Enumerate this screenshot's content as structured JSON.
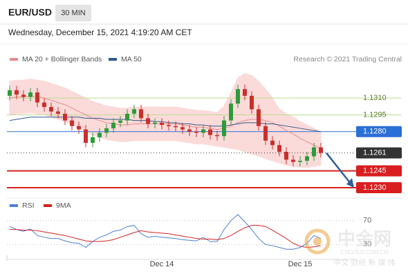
{
  "header": {
    "pair": "EUR/USD",
    "timeframe": "30 MIN",
    "datetime": "Wednesday, December 15, 2021 4:19:20 AM CET",
    "source": "Research © 2021 Trading Central"
  },
  "chart_data": [
    {
      "type": "candlestick",
      "categories": [
        null,
        null,
        null,
        null,
        null,
        null,
        null,
        null,
        null,
        null,
        null,
        null,
        null,
        null,
        null,
        null,
        null,
        null,
        null,
        null,
        null,
        null,
        "Dec 14",
        null,
        null,
        null,
        null,
        null,
        null,
        null,
        null,
        null,
        null,
        null,
        null,
        null,
        null,
        null,
        null,
        null,
        null,
        null,
        "Dec 15",
        null,
        null,
        null
      ],
      "open": [
        1.1312,
        1.1317,
        1.1313,
        1.1311,
        1.1315,
        1.1306,
        1.1302,
        1.1298,
        1.1296,
        1.129,
        1.1285,
        1.1282,
        1.127,
        1.1275,
        1.1279,
        1.1283,
        1.1288,
        1.129,
        1.1296,
        1.13,
        1.1292,
        1.1287,
        1.1288,
        1.1286,
        1.1285,
        1.1284,
        1.1282,
        1.128,
        1.1279,
        1.1282,
        1.1277,
        1.1276,
        1.129,
        1.1305,
        1.1318,
        1.1312,
        1.13,
        1.1285,
        1.1272,
        1.1268,
        1.1262,
        1.1255,
        1.1253,
        1.1254,
        1.1258,
        1.1266
      ],
      "high": [
        1.1321,
        1.1321,
        1.1317,
        1.1319,
        1.1319,
        1.131,
        1.1306,
        1.1302,
        1.13,
        1.1294,
        1.1289,
        1.1286,
        1.1279,
        1.1283,
        1.1287,
        1.1292,
        1.1294,
        1.13,
        1.1304,
        1.1304,
        1.1296,
        1.1292,
        1.1292,
        1.129,
        1.1289,
        1.1288,
        1.1286,
        1.1284,
        1.1286,
        1.1286,
        1.1281,
        1.1294,
        1.1309,
        1.1322,
        1.1322,
        1.1316,
        1.1304,
        1.1289,
        1.1276,
        1.1272,
        1.1266,
        1.1259,
        1.1258,
        1.1262,
        1.127,
        1.127
      ],
      "low": [
        1.1308,
        1.1309,
        1.1307,
        1.1307,
        1.1302,
        1.1298,
        1.1294,
        1.1292,
        1.1286,
        1.1281,
        1.1278,
        1.1266,
        1.1266,
        1.1271,
        1.1275,
        1.1279,
        1.1284,
        1.1286,
        1.1292,
        1.1288,
        1.1283,
        1.1283,
        1.1282,
        1.1281,
        1.128,
        1.1278,
        1.1276,
        1.1275,
        1.1275,
        1.1273,
        1.1272,
        1.1272,
        1.1286,
        1.1301,
        1.1308,
        1.1296,
        1.1281,
        1.1268,
        1.1264,
        1.1258,
        1.1251,
        1.1249,
        1.1249,
        1.125,
        1.1254,
        1.1257
      ],
      "close": [
        1.1317,
        1.1313,
        1.1311,
        1.1315,
        1.1306,
        1.1302,
        1.1298,
        1.1296,
        1.129,
        1.1285,
        1.1282,
        1.127,
        1.1275,
        1.1279,
        1.1283,
        1.1288,
        1.129,
        1.1296,
        1.13,
        1.1292,
        1.1287,
        1.1288,
        1.1286,
        1.1285,
        1.1284,
        1.1282,
        1.128,
        1.1279,
        1.1282,
        1.1277,
        1.1276,
        1.129,
        1.1305,
        1.1318,
        1.1312,
        1.13,
        1.1285,
        1.1272,
        1.1268,
        1.1262,
        1.1255,
        1.1253,
        1.1254,
        1.1258,
        1.1266,
        1.1261
      ],
      "up_color": "#2e9b3a",
      "down_color": "#c9302c",
      "series": [
        {
          "name": "MA 20 + Bollinger Bands",
          "color": "#e88a8a",
          "band_color": "#fbdada",
          "values": [
            1.131,
            1.1311,
            1.1311,
            1.1312,
            1.1311,
            1.131,
            1.1308,
            1.1306,
            1.1304,
            1.1301,
            1.1298,
            1.1295,
            1.1292,
            1.129,
            1.1288,
            1.1287,
            1.1286,
            1.1286,
            1.1287,
            1.1287,
            1.1287,
            1.1287,
            1.1287,
            1.1287,
            1.1287,
            1.1286,
            1.1285,
            1.1284,
            1.1284,
            1.1283,
            1.1282,
            1.1283,
            1.1285,
            1.1288,
            1.129,
            1.1291,
            1.1291,
            1.129,
            1.1288,
            1.1285,
            1.1281,
            1.1278,
            1.1274,
            1.1271,
            1.1268,
            1.1265
          ],
          "upper": [
            1.1325,
            1.1326,
            1.1326,
            1.1327,
            1.1326,
            1.1325,
            1.1323,
            1.1321,
            1.1319,
            1.1316,
            1.1313,
            1.131,
            1.1307,
            1.1305,
            1.1303,
            1.1302,
            1.1301,
            1.1301,
            1.1302,
            1.1302,
            1.1302,
            1.1302,
            1.1302,
            1.1302,
            1.1302,
            1.1301,
            1.13,
            1.1299,
            1.1299,
            1.1298,
            1.1297,
            1.1303,
            1.1315,
            1.1328,
            1.1332,
            1.133,
            1.1325,
            1.1318,
            1.131,
            1.13,
            1.1296,
            1.1293,
            1.1289,
            1.1286,
            1.1283,
            1.128
          ],
          "lower": [
            1.1295,
            1.1296,
            1.1296,
            1.1297,
            1.1296,
            1.1295,
            1.1293,
            1.1291,
            1.1289,
            1.1286,
            1.1283,
            1.128,
            1.1277,
            1.1275,
            1.1273,
            1.1272,
            1.1271,
            1.1271,
            1.1272,
            1.1272,
            1.1272,
            1.1272,
            1.1272,
            1.1272,
            1.1272,
            1.1271,
            1.127,
            1.1269,
            1.1269,
            1.1268,
            1.1267,
            1.1266,
            1.1265,
            1.1264,
            1.1262,
            1.126,
            1.1258,
            1.1256,
            1.1254,
            1.1252,
            1.125,
            1.1249,
            1.1248,
            1.1248,
            1.1249,
            1.125
          ]
        },
        {
          "name": "MA 50",
          "color": "#2c5a8a",
          "values": [
            1.129,
            1.1291,
            1.1292,
            1.1293,
            1.1293,
            1.1293,
            1.1293,
            1.1293,
            1.1293,
            1.1293,
            1.1293,
            1.1292,
            1.1292,
            1.1292,
            1.1291,
            1.1291,
            1.1291,
            1.1291,
            1.129,
            1.129,
            1.129,
            1.1289,
            1.1289,
            1.1288,
            1.1288,
            1.1287,
            1.1287,
            1.1286,
            1.1286,
            1.1285,
            1.1285,
            1.1285,
            1.1286,
            1.1287,
            1.1288,
            1.1288,
            1.1288,
            1.1287,
            1.1287,
            1.1286,
            1.1285,
            1.1284,
            1.1283,
            1.1282,
            1.1281,
            1.128
          ]
        }
      ],
      "levels": [
        {
          "value": 1.131,
          "label": "1.1310",
          "color": "#b9dc8e",
          "boxed": false,
          "dotted": false
        },
        {
          "value": 1.1295,
          "label": "1.1295",
          "color": "#b9dc8e",
          "boxed": false,
          "dotted": false
        },
        {
          "value": 1.128,
          "label": "1.1280",
          "color": "#2a6fd6",
          "boxed": true,
          "dotted": false
        },
        {
          "value": 1.1261,
          "label": "1.1261",
          "color": "#333333",
          "boxed": true,
          "dotted": true
        },
        {
          "value": 1.1245,
          "label": "1.1245",
          "color": "#d81e1e",
          "boxed": true,
          "dotted": false
        },
        {
          "value": 1.123,
          "label": "1.1230",
          "color": "#d81e1e",
          "boxed": true,
          "dotted": false
        }
      ],
      "ylim": [
        1.1222,
        1.1339
      ]
    },
    {
      "type": "line",
      "series": [
        {
          "name": "RSI",
          "color": "#4a7fd4",
          "values": [
            60,
            55,
            52,
            56,
            45,
            42,
            40,
            40,
            36,
            33,
            32,
            25,
            35,
            42,
            46,
            52,
            54,
            60,
            62,
            48,
            42,
            44,
            42,
            41,
            40,
            38,
            37,
            36,
            42,
            35,
            35,
            55,
            70,
            80,
            68,
            55,
            40,
            30,
            28,
            25,
            22,
            22,
            25,
            32,
            45,
            40
          ]
        },
        {
          "name": "9MA",
          "color": "#d42020",
          "values": [
            55,
            55,
            54,
            54,
            53,
            51,
            49,
            47,
            45,
            42,
            39,
            36,
            35,
            35,
            36,
            38,
            42,
            46,
            50,
            53,
            51,
            50,
            49,
            48,
            46,
            44,
            42,
            40,
            39,
            39,
            38,
            40,
            45,
            52,
            58,
            62,
            62,
            60,
            54,
            47,
            40,
            32,
            27,
            25,
            26,
            28
          ]
        }
      ],
      "ylim": [
        5,
        95
      ],
      "yticks": [
        30,
        70
      ],
      "grid": true
    }
  ],
  "watermark": {
    "brand": "中金网",
    "site": "CNGOLD.COM.CN",
    "slogan": "中文 财经 新 媒 体"
  }
}
